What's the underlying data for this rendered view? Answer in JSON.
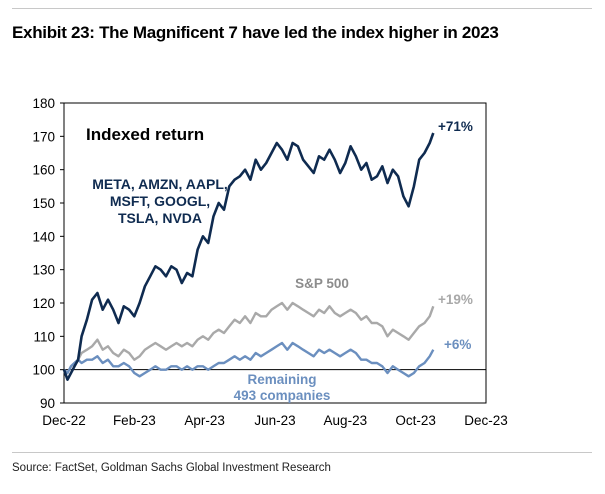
{
  "header": {
    "title": "Exhibit 23: The Magnificent 7 have led the index higher in 2023"
  },
  "footer": {
    "source": "Source: FactSet, Goldman Sachs Global Investment Research"
  },
  "colors": {
    "mag7": "#0f2b50",
    "sp500": "#a9a9a9",
    "remaining": "#6b8fbf",
    "axis": "#000000"
  },
  "chart_data": {
    "type": "line",
    "title": "Indexed return",
    "xlabel": "",
    "ylabel": "",
    "ylim": [
      90,
      180
    ],
    "yticks": [
      90,
      100,
      110,
      120,
      130,
      140,
      150,
      160,
      170,
      180
    ],
    "xlim": [
      0,
      12
    ],
    "xticks": [
      {
        "x": 0,
        "label": "Dec-22"
      },
      {
        "x": 2,
        "label": "Feb-23"
      },
      {
        "x": 4,
        "label": "Apr-23"
      },
      {
        "x": 6,
        "label": "Jun-23"
      },
      {
        "x": 8,
        "label": "Aug-23"
      },
      {
        "x": 10,
        "label": "Oct-23"
      },
      {
        "x": 12,
        "label": "Dec-23"
      }
    ],
    "reference_line": 100,
    "series": [
      {
        "name": "META, AMZN, AAPL, MSFT, GOOGL, TSLA, NVDA",
        "label_lines": [
          "META, AMZN, AAPL,",
          "MSFT, GOOGL,",
          "TSLA, NVDA"
        ],
        "end_label": "+71%",
        "color_key": "mag7",
        "x": [
          0.0,
          0.1,
          0.2,
          0.3,
          0.4,
          0.5,
          0.65,
          0.8,
          0.95,
          1.1,
          1.25,
          1.4,
          1.55,
          1.7,
          1.85,
          2.0,
          2.15,
          2.3,
          2.45,
          2.6,
          2.75,
          2.9,
          3.05,
          3.2,
          3.35,
          3.5,
          3.65,
          3.8,
          3.95,
          4.1,
          4.25,
          4.4,
          4.55,
          4.7,
          4.85,
          5.0,
          5.15,
          5.3,
          5.45,
          5.6,
          5.75,
          5.9,
          6.05,
          6.2,
          6.35,
          6.5,
          6.65,
          6.8,
          6.95,
          7.1,
          7.25,
          7.4,
          7.55,
          7.7,
          7.85,
          8.0,
          8.15,
          8.3,
          8.45,
          8.6,
          8.75,
          8.9,
          9.05,
          9.2,
          9.35,
          9.5,
          9.65,
          9.8,
          9.95,
          10.1,
          10.25,
          10.4,
          10.5
        ],
        "values": [
          100,
          97,
          99,
          101,
          103,
          110,
          115,
          121,
          123,
          118,
          121,
          118,
          114,
          119,
          118,
          116,
          120,
          125,
          128,
          131,
          130,
          128,
          131,
          130,
          126,
          129,
          128,
          136,
          140,
          138,
          146,
          150,
          148,
          155,
          157,
          158,
          160,
          157,
          163,
          160,
          162,
          165,
          168,
          166,
          163,
          168,
          167,
          163,
          161,
          159,
          164,
          163,
          166,
          163,
          159,
          162,
          167,
          164,
          160,
          162,
          157,
          158,
          161,
          156,
          160,
          158,
          152,
          149,
          155,
          163,
          165,
          168,
          171
        ]
      },
      {
        "name": "S&P 500",
        "end_label": "+19%",
        "color_key": "sp500",
        "x": [
          0.0,
          0.1,
          0.2,
          0.3,
          0.4,
          0.5,
          0.65,
          0.8,
          0.95,
          1.1,
          1.25,
          1.4,
          1.55,
          1.7,
          1.85,
          2.0,
          2.15,
          2.3,
          2.45,
          2.6,
          2.75,
          2.9,
          3.05,
          3.2,
          3.35,
          3.5,
          3.65,
          3.8,
          3.95,
          4.1,
          4.25,
          4.4,
          4.55,
          4.7,
          4.85,
          5.0,
          5.15,
          5.3,
          5.45,
          5.6,
          5.75,
          5.9,
          6.05,
          6.2,
          6.35,
          6.5,
          6.65,
          6.8,
          6.95,
          7.1,
          7.25,
          7.4,
          7.55,
          7.7,
          7.85,
          8.0,
          8.15,
          8.3,
          8.45,
          8.6,
          8.75,
          8.9,
          9.05,
          9.2,
          9.35,
          9.5,
          9.65,
          9.8,
          9.95,
          10.1,
          10.25,
          10.4,
          10.5
        ],
        "values": [
          100,
          99,
          101,
          102,
          103,
          105,
          106,
          107,
          109,
          106,
          107,
          105,
          104,
          106,
          105,
          103,
          104,
          106,
          107,
          108,
          107,
          106,
          107,
          108,
          107,
          108,
          107,
          109,
          110,
          109,
          111,
          112,
          111,
          113,
          115,
          114,
          116,
          114,
          117,
          116,
          116,
          118,
          119,
          120,
          118,
          120,
          119,
          118,
          117,
          116,
          118,
          117,
          119,
          117,
          116,
          117,
          118,
          117,
          115,
          116,
          114,
          114,
          113,
          110,
          112,
          111,
          110,
          109,
          111,
          113,
          114,
          116,
          119
        ]
      },
      {
        "name": "Remaining 493 companies",
        "label_lines": [
          "Remaining",
          "493 companies"
        ],
        "end_label": "+6%",
        "color_key": "remaining",
        "x": [
          0.0,
          0.1,
          0.2,
          0.3,
          0.4,
          0.5,
          0.65,
          0.8,
          0.95,
          1.1,
          1.25,
          1.4,
          1.55,
          1.7,
          1.85,
          2.0,
          2.15,
          2.3,
          2.45,
          2.6,
          2.75,
          2.9,
          3.05,
          3.2,
          3.35,
          3.5,
          3.65,
          3.8,
          3.95,
          4.1,
          4.25,
          4.4,
          4.55,
          4.7,
          4.85,
          5.0,
          5.15,
          5.3,
          5.45,
          5.6,
          5.75,
          5.9,
          6.05,
          6.2,
          6.35,
          6.5,
          6.65,
          6.8,
          6.95,
          7.1,
          7.25,
          7.4,
          7.55,
          7.7,
          7.85,
          8.0,
          8.15,
          8.3,
          8.45,
          8.6,
          8.75,
          8.9,
          9.05,
          9.2,
          9.35,
          9.5,
          9.65,
          9.8,
          9.95,
          10.1,
          10.25,
          10.4,
          10.5
        ],
        "values": [
          100,
          99,
          101,
          102,
          103,
          102,
          103,
          103,
          104,
          102,
          103,
          101,
          101,
          102,
          101,
          99,
          98,
          99,
          100,
          101,
          100,
          100,
          101,
          101,
          100,
          101,
          100,
          101,
          101,
          100,
          101,
          102,
          102,
          103,
          104,
          103,
          104,
          103,
          105,
          104,
          105,
          106,
          107,
          108,
          106,
          108,
          107,
          106,
          105,
          104,
          106,
          105,
          106,
          105,
          104,
          105,
          106,
          105,
          103,
          103,
          102,
          102,
          101,
          99,
          101,
          100,
          99,
          98,
          99,
          101,
          102,
          104,
          106
        ]
      }
    ]
  }
}
